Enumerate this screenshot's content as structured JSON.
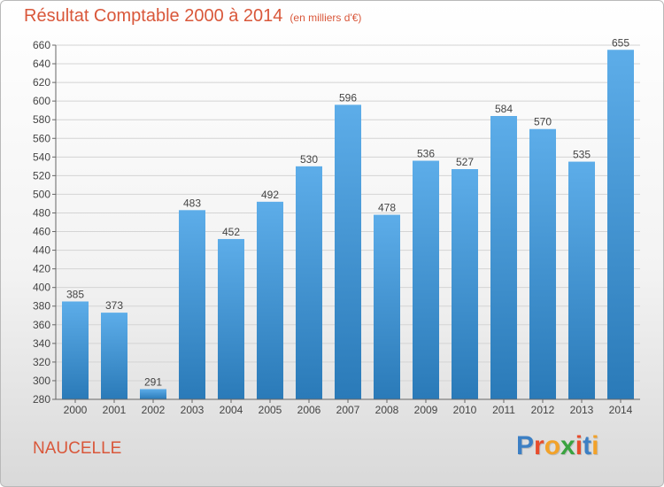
{
  "header": {
    "title": "Résultat Comptable 2000 à 2014",
    "subtitle": "(en milliers d'€)"
  },
  "footer": {
    "commune": "NAUCELLE",
    "brand": "Proxiti",
    "brand_colors": [
      "#3c7fc4",
      "#e74c2c",
      "#f2a22a",
      "#3aa340",
      "#e74c2c",
      "#3c7fc4",
      "#f2a22a"
    ]
  },
  "chart_data": {
    "type": "bar",
    "categories": [
      "2000",
      "2001",
      "2002",
      "2003",
      "2004",
      "2005",
      "2006",
      "2007",
      "2008",
      "2009",
      "2010",
      "2011",
      "2012",
      "2013",
      "2014"
    ],
    "values": [
      385,
      373,
      291,
      483,
      452,
      492,
      530,
      596,
      478,
      536,
      527,
      584,
      570,
      535,
      655
    ],
    "data_labels": [
      "385",
      "373",
      "291",
      "483",
      "452",
      "492",
      "530",
      "596",
      "478",
      "536",
      "527",
      "584",
      "570",
      "535",
      "655"
    ],
    "ylim": [
      280,
      660
    ],
    "yticks": [
      280,
      300,
      320,
      340,
      360,
      380,
      400,
      420,
      440,
      460,
      480,
      500,
      520,
      540,
      560,
      580,
      600,
      620,
      640,
      660
    ],
    "grid": true,
    "bar_color_top": "#5dade9",
    "bar_color_bottom": "#2a7ab8",
    "title": "Résultat Comptable 2000 à 2014",
    "xlabel": "",
    "ylabel": ""
  }
}
